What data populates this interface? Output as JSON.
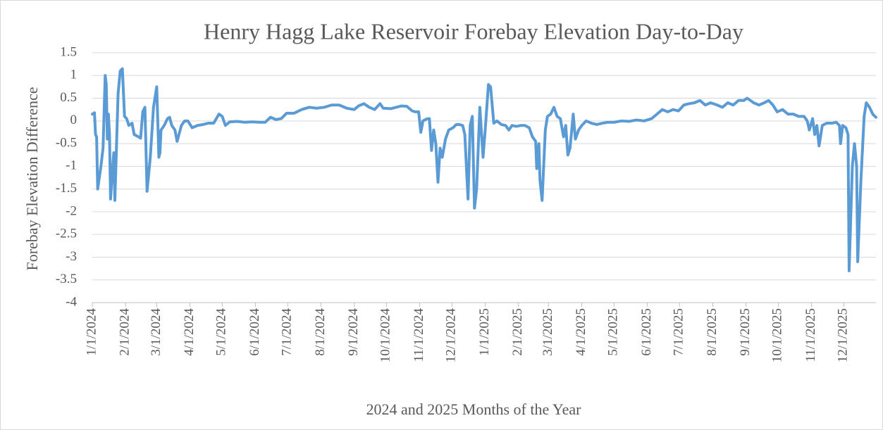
{
  "chart_data": {
    "type": "line",
    "title": "Henry Hagg Lake Reservoir Forebay Elevation Day-to-Day",
    "x_label": "2024 and 2025 Months of the Year",
    "y_label": "Forebay Elevation Difference",
    "grid": true,
    "xlim": [
      "1/1/2024",
      "12/31/2025"
    ],
    "xticks": [
      "1/1/2024",
      "2/1/2024",
      "3/1/2024",
      "4/1/2024",
      "5/1/2024",
      "6/1/2024",
      "7/1/2024",
      "8/1/2024",
      "9/1/2024",
      "10/1/2024",
      "11/1/2024",
      "12/1/2024",
      "1/1/2025",
      "2/1/2025",
      "3/1/2025",
      "4/1/2025",
      "5/1/2025",
      "6/1/2025",
      "7/1/2025",
      "8/1/2025",
      "9/1/2025",
      "10/1/2025",
      "11/1/2025",
      "12/1/2025"
    ],
    "ylim": [
      -4,
      1.5
    ],
    "yticks": [
      1.5,
      1,
      0.5,
      0,
      -0.5,
      -1,
      -1.5,
      -2,
      -2.5,
      -3,
      -3.5,
      -4
    ],
    "x": [
      "1/1/2024",
      "1/3/2024",
      "1/4/2024",
      "1/5/2024",
      "1/6/2024",
      "1/9/2024",
      "1/11/2024",
      "1/13/2024",
      "1/14/2024",
      "1/15/2024",
      "1/16/2024",
      "1/17/2024",
      "1/18/2024",
      "1/20/2024",
      "1/21/2024",
      "1/22/2024",
      "1/25/2024",
      "1/27/2024",
      "1/29/2024",
      "1/31/2024",
      "2/2/2024",
      "2/4/2024",
      "2/7/2024",
      "2/9/2024",
      "2/13/2024",
      "2/15/2024",
      "2/17/2024",
      "2/19/2024",
      "2/21/2024",
      "2/24/2024",
      "2/27/2024",
      "3/1/2024",
      "3/3/2024",
      "3/4/2024",
      "3/5/2024",
      "3/8/2024",
      "3/11/2024",
      "3/13/2024",
      "3/15/2024",
      "3/18/2024",
      "3/20/2024",
      "3/24/2024",
      "3/27/2024",
      "3/30/2024",
      "4/3/2024",
      "4/8/2024",
      "4/13/2024",
      "4/18/2024",
      "4/23/2024",
      "4/28/2024",
      "5/1/2024",
      "5/4/2024",
      "5/8/2024",
      "5/15/2024",
      "5/22/2024",
      "5/29/2024",
      "6/5/2024",
      "6/10/2024",
      "6/15/2024",
      "6/20/2024",
      "6/25/2024",
      "6/30/2024",
      "7/7/2024",
      "7/14/2024",
      "7/21/2024",
      "7/28/2024",
      "8/4/2024",
      "8/11/2024",
      "8/18/2024",
      "8/25/2024",
      "9/1/2024",
      "9/5/2024",
      "9/10/2024",
      "9/15/2024",
      "9/20/2024",
      "9/25/2024",
      "9/28/2024",
      "10/5/2024",
      "10/10/2024",
      "10/15/2024",
      "10/20/2024",
      "10/25/2024",
      "10/28/2024",
      "10/31/2024",
      "11/2/2024",
      "11/4/2024",
      "11/8/2024",
      "11/10/2024",
      "11/12/2024",
      "11/14/2024",
      "11/16/2024",
      "11/18/2024",
      "11/20/2024",
      "11/22/2024",
      "11/25/2024",
      "11/28/2024",
      "12/2/2024",
      "12/5/2024",
      "12/8/2024",
      "12/11/2024",
      "12/13/2024",
      "12/16/2024",
      "12/18/2024",
      "12/20/2024",
      "12/22/2024",
      "12/24/2024",
      "12/27/2024",
      "12/30/2024",
      "1/1/2025",
      "1/4/2025",
      "1/6/2025",
      "1/9/2025",
      "1/12/2025",
      "1/16/2025",
      "1/20/2025",
      "1/23/2025",
      "1/26/2025",
      "1/30/2025",
      "2/3/2025",
      "2/7/2025",
      "2/11/2025",
      "2/14/2025",
      "2/17/2025",
      "2/18/2025",
      "2/20/2025",
      "2/21/2025",
      "2/23/2025",
      "2/26/2025",
      "2/28/2025",
      "3/3/2025",
      "3/6/2025",
      "3/9/2025",
      "3/12/2025",
      "3/15/2025",
      "3/17/2025",
      "3/19/2025",
      "3/21/2025",
      "3/24/2025",
      "3/26/2025",
      "3/29/2025",
      "4/1/2025",
      "4/5/2025",
      "4/10/2025",
      "4/15/2025",
      "4/20/2025",
      "4/25/2025",
      "5/1/2025",
      "5/8/2025",
      "5/15/2025",
      "5/22/2025",
      "5/29/2025",
      "6/5/2025",
      "6/10/2025",
      "6/15/2025",
      "6/20/2025",
      "6/25/2025",
      "6/30/2025",
      "7/5/2025",
      "7/10/2025",
      "7/15/2025",
      "7/20/2025",
      "7/25/2025",
      "7/30/2025",
      "8/5/2025",
      "8/10/2025",
      "8/15/2025",
      "8/20/2025",
      "8/25/2025",
      "8/30/2025",
      "9/2/2025",
      "9/8/2025",
      "9/13/2025",
      "9/18/2025",
      "9/22/2025",
      "9/26/2025",
      "9/30/2025",
      "10/5/2025",
      "10/10/2025",
      "10/15/2025",
      "10/20/2025",
      "10/25/2025",
      "10/28/2025",
      "10/30/2025",
      "11/2/2025",
      "11/4/2025",
      "11/6/2025",
      "11/8/2025",
      "11/11/2025",
      "11/15/2025",
      "11/20/2025",
      "11/24/2025",
      "11/27/2025",
      "11/28/2025",
      "11/30/2025",
      "12/3/2025",
      "12/5/2025",
      "12/6/2025",
      "12/9/2025",
      "12/11/2025",
      "12/13/2025",
      "12/14/2025",
      "12/17/2025",
      "12/20/2025",
      "12/22/2025",
      "12/25/2025",
      "12/28/2025",
      "12/31/2025"
    ],
    "series": [
      {
        "name": "Forebay Elevation Difference",
        "color": "#5b9bd5",
        "values": [
          0.15,
          0.18,
          -0.3,
          -0.35,
          -1.5,
          -1.0,
          -0.6,
          1.0,
          0.8,
          -0.4,
          0.15,
          -0.3,
          -1.72,
          -1.0,
          -0.7,
          -1.75,
          0.6,
          1.1,
          1.15,
          0.1,
          0.05,
          -0.1,
          -0.05,
          -0.3,
          -0.35,
          -0.38,
          0.2,
          0.3,
          -1.55,
          -0.8,
          0.3,
          0.75,
          -0.8,
          -0.7,
          -0.2,
          -0.1,
          0.05,
          0.08,
          -0.1,
          -0.2,
          -0.45,
          -0.1,
          0.0,
          0.0,
          -0.15,
          -0.1,
          -0.08,
          -0.05,
          -0.05,
          0.15,
          0.1,
          -0.1,
          -0.02,
          -0.01,
          -0.03,
          -0.02,
          -0.03,
          -0.03,
          0.08,
          0.03,
          0.05,
          0.17,
          0.17,
          0.25,
          0.3,
          0.28,
          0.3,
          0.35,
          0.35,
          0.28,
          0.25,
          0.33,
          0.38,
          0.3,
          0.25,
          0.38,
          0.28,
          0.27,
          0.3,
          0.33,
          0.32,
          0.22,
          0.2,
          0.2,
          -0.25,
          0.0,
          0.05,
          0.05,
          -0.65,
          -0.2,
          -0.5,
          -1.35,
          -0.6,
          -0.8,
          -0.4,
          -0.2,
          -0.15,
          -0.08,
          -0.08,
          -0.1,
          -0.3,
          -1.72,
          -0.1,
          0.1,
          -1.92,
          -1.5,
          0.3,
          -0.8,
          -0.2,
          0.8,
          0.75,
          -0.05,
          0.0,
          -0.08,
          -0.1,
          -0.2,
          -0.1,
          -0.12,
          -0.1,
          -0.1,
          -0.15,
          -0.35,
          -0.45,
          -1.05,
          -0.5,
          -1.3,
          -1.75,
          -0.2,
          0.1,
          0.15,
          0.3,
          0.1,
          0.05,
          -0.35,
          -0.1,
          -0.75,
          -0.6,
          0.15,
          -0.4,
          -0.2,
          -0.1,
          0.0,
          -0.05,
          -0.08,
          -0.05,
          -0.03,
          -0.03,
          0.0,
          -0.01,
          0.02,
          0.0,
          0.05,
          0.15,
          0.25,
          0.2,
          0.25,
          0.22,
          0.35,
          0.38,
          0.4,
          0.45,
          0.35,
          0.4,
          0.35,
          0.3,
          0.4,
          0.35,
          0.45,
          0.45,
          0.5,
          0.4,
          0.35,
          0.4,
          0.45,
          0.35,
          0.2,
          0.25,
          0.15,
          0.15,
          0.1,
          0.1,
          0.0,
          -0.2,
          0.05,
          -0.3,
          -0.1,
          -0.55,
          -0.1,
          -0.05,
          -0.05,
          -0.03,
          -0.1,
          -0.5,
          -0.1,
          -0.15,
          -0.3,
          -3.3,
          -1.0,
          -0.5,
          -1.0,
          -3.1,
          -1.3,
          0.1,
          0.4,
          0.3,
          0.15,
          0.08
        ]
      }
    ]
  }
}
